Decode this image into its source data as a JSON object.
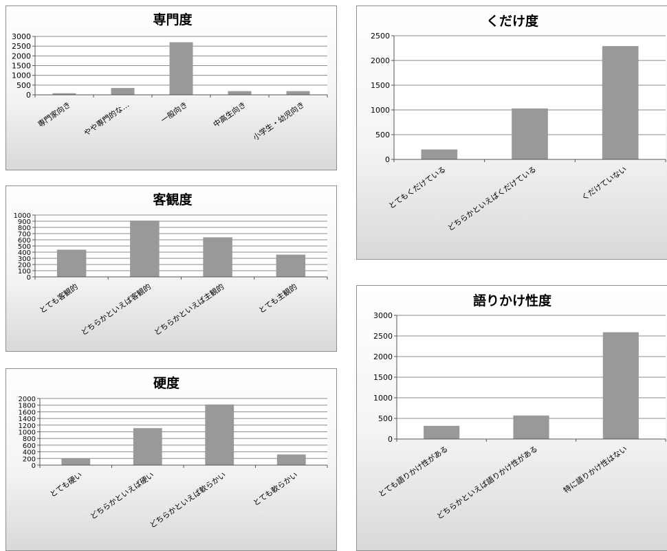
{
  "chart_data": [
    {
      "type": "bar",
      "title": "専門度",
      "categories": [
        "専門家向き",
        "やや専門的な…",
        "一般向き",
        "中高生向き",
        "小学生・幼児向き"
      ],
      "values": [
        80,
        350,
        2700,
        190,
        190
      ],
      "ylim": [
        0,
        3000
      ],
      "yticks": [
        0,
        500,
        1000,
        1500,
        2000,
        2500,
        3000
      ],
      "grid": true,
      "legend": "none"
    },
    {
      "type": "bar",
      "title": "客観度",
      "categories": [
        "とても客観的",
        "どちらかといえば客観的",
        "どちらかといえば主観的",
        "とても主観的"
      ],
      "values": [
        440,
        910,
        640,
        360
      ],
      "ylim": [
        0,
        1000
      ],
      "yticks": [
        0,
        100,
        200,
        300,
        400,
        500,
        600,
        700,
        800,
        900,
        1000
      ],
      "grid": true,
      "legend": "none"
    },
    {
      "type": "bar",
      "title": "硬度",
      "categories": [
        "とても硬い",
        "どちらかといえば硬い",
        "どちらかといえば軟らかい",
        "とても軟らかい"
      ],
      "values": [
        200,
        1110,
        1820,
        320
      ],
      "ylim": [
        0,
        2000
      ],
      "yticks": [
        0,
        200,
        400,
        600,
        800,
        1000,
        1200,
        1400,
        1600,
        1800,
        2000
      ],
      "grid": true,
      "legend": "none"
    },
    {
      "type": "bar",
      "title": "くだけ度",
      "categories": [
        "とてもくだけている",
        "どちらかといえばくだけている",
        "くだけていない"
      ],
      "values": [
        200,
        1030,
        2290
      ],
      "ylim": [
        0,
        2500
      ],
      "yticks": [
        0,
        500,
        1000,
        1500,
        2000,
        2500
      ],
      "grid": true,
      "legend": "none"
    },
    {
      "type": "bar",
      "title": "語りかけ性度",
      "categories": [
        "とても語りかけ性がある",
        "どちらかといえば語りかけ性がある",
        "特に語りかけ性はない"
      ],
      "values": [
        320,
        570,
        2590
      ],
      "ylim": [
        0,
        3000
      ],
      "yticks": [
        0,
        500,
        1000,
        1500,
        2000,
        2500,
        3000
      ],
      "grid": true,
      "legend": "none"
    }
  ]
}
